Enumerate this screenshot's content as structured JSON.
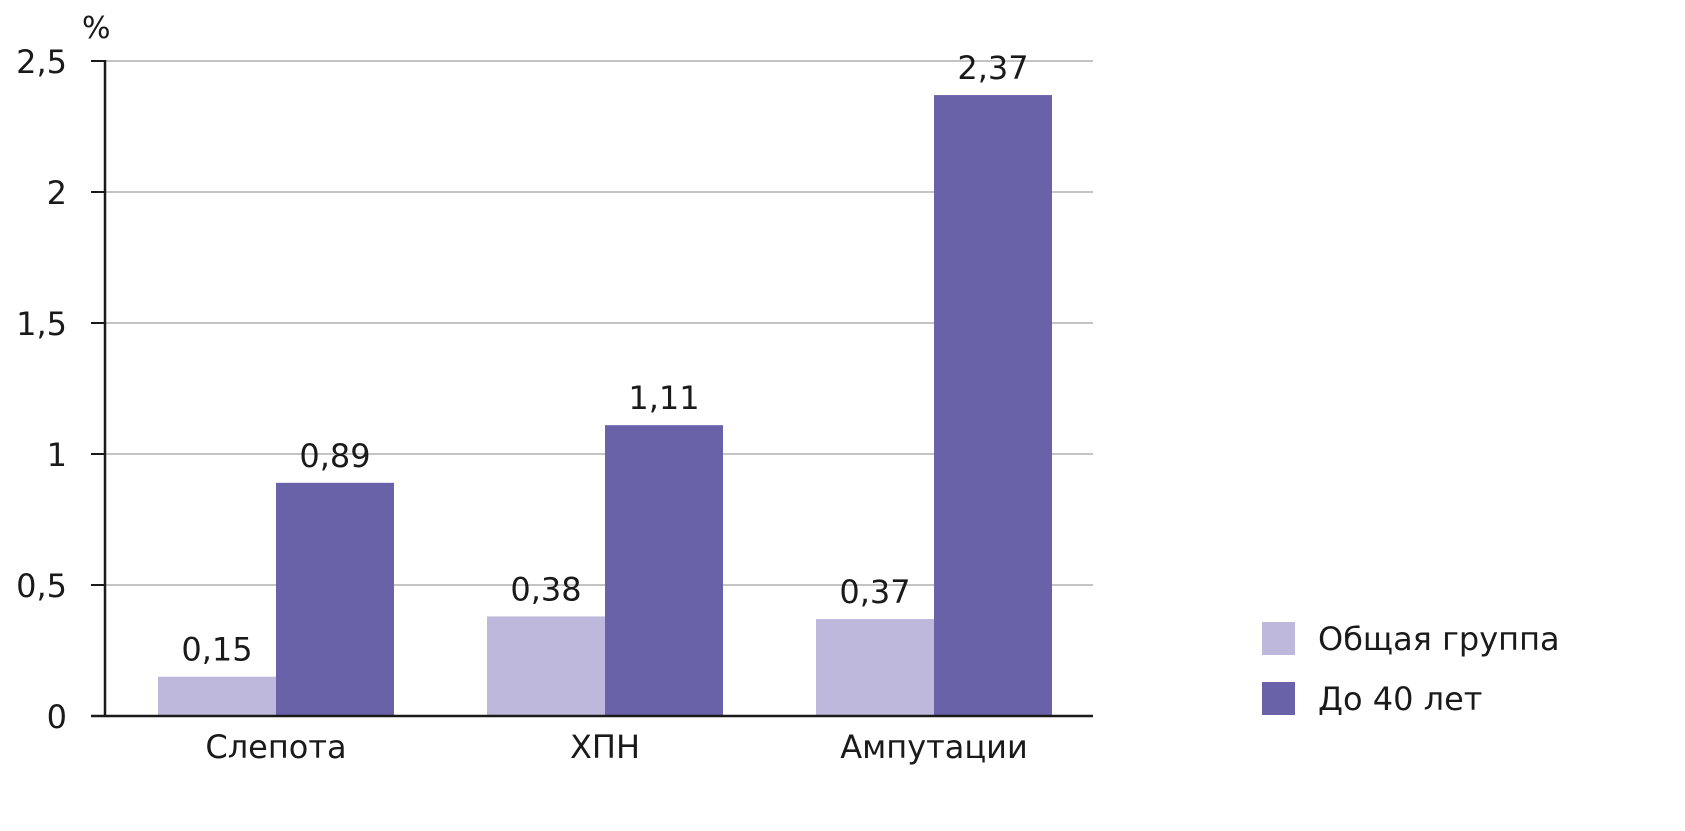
{
  "chart_data": {
    "type": "bar",
    "title": "",
    "xlabel": "",
    "ylabel": "%",
    "ylim": [
      0,
      2.5
    ],
    "yticks": [
      {
        "value": 0,
        "label": "0"
      },
      {
        "value": 0.5,
        "label": "0,5"
      },
      {
        "value": 1,
        "label": "1"
      },
      {
        "value": 1.5,
        "label": "1,5"
      },
      {
        "value": 2,
        "label": "2"
      },
      {
        "value": 2.5,
        "label": "2,5"
      }
    ],
    "categories": [
      "Слепота",
      "ХПН",
      "Ампутации"
    ],
    "series": [
      {
        "name": "Общая группа",
        "color": "#bdb8dc",
        "values": [
          0.15,
          0.38,
          0.37
        ],
        "labels": [
          "0,15",
          "0,38",
          "0,37"
        ]
      },
      {
        "name": "До 40 лет",
        "color": "#6962a9",
        "values": [
          0.89,
          1.11,
          2.37
        ],
        "labels": [
          "0,89",
          "1,11",
          "2,37"
        ]
      }
    ],
    "grid": true,
    "legend": "bottom-right"
  }
}
